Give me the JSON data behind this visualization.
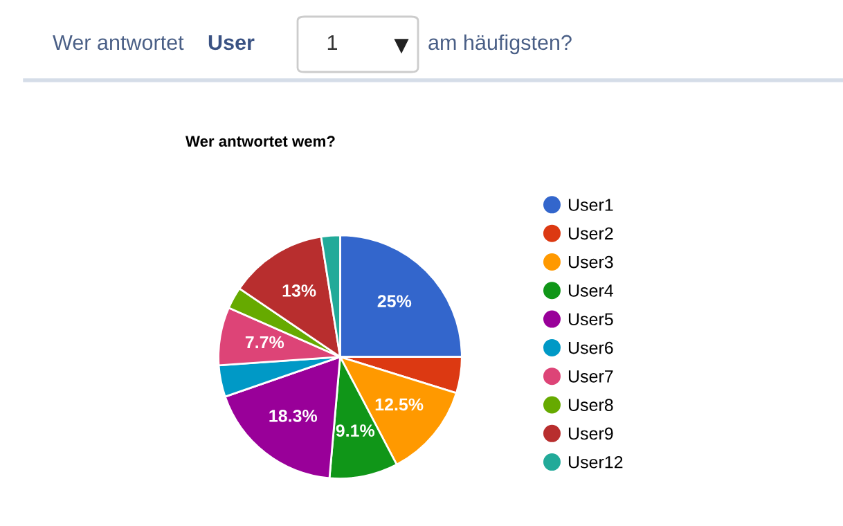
{
  "chart_data": {
    "type": "pie",
    "title": "Wer antwortet wem?",
    "categories": [
      "User1",
      "User2",
      "User3",
      "User4",
      "User5",
      "User6",
      "User7",
      "User8",
      "User9",
      "User12"
    ],
    "values": [
      25,
      4.8,
      12.5,
      9.1,
      18.3,
      4.2,
      7.7,
      2.9,
      13,
      2.5
    ],
    "colors": [
      "#3366cc",
      "#dc3912",
      "#ff9900",
      "#109618",
      "#990099",
      "#0099c6",
      "#dd4477",
      "#66aa00",
      "#b82e2e",
      "#22aa99"
    ],
    "value_labels": [
      "25%",
      null,
      "12.5%",
      "9.1%",
      "18.3%",
      null,
      "7.7%",
      null,
      "13%",
      null
    ],
    "legend": "right",
    "annotations": [
      "Wer antwortet",
      "User",
      "1",
      "am häufigsten?"
    ]
  }
}
